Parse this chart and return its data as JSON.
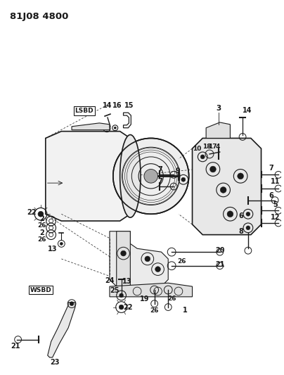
{
  "title": "81J08 4800",
  "bg_color": "#ffffff",
  "line_color": "#1a1a1a",
  "figsize": [
    4.04,
    5.33
  ],
  "dpi": 100
}
